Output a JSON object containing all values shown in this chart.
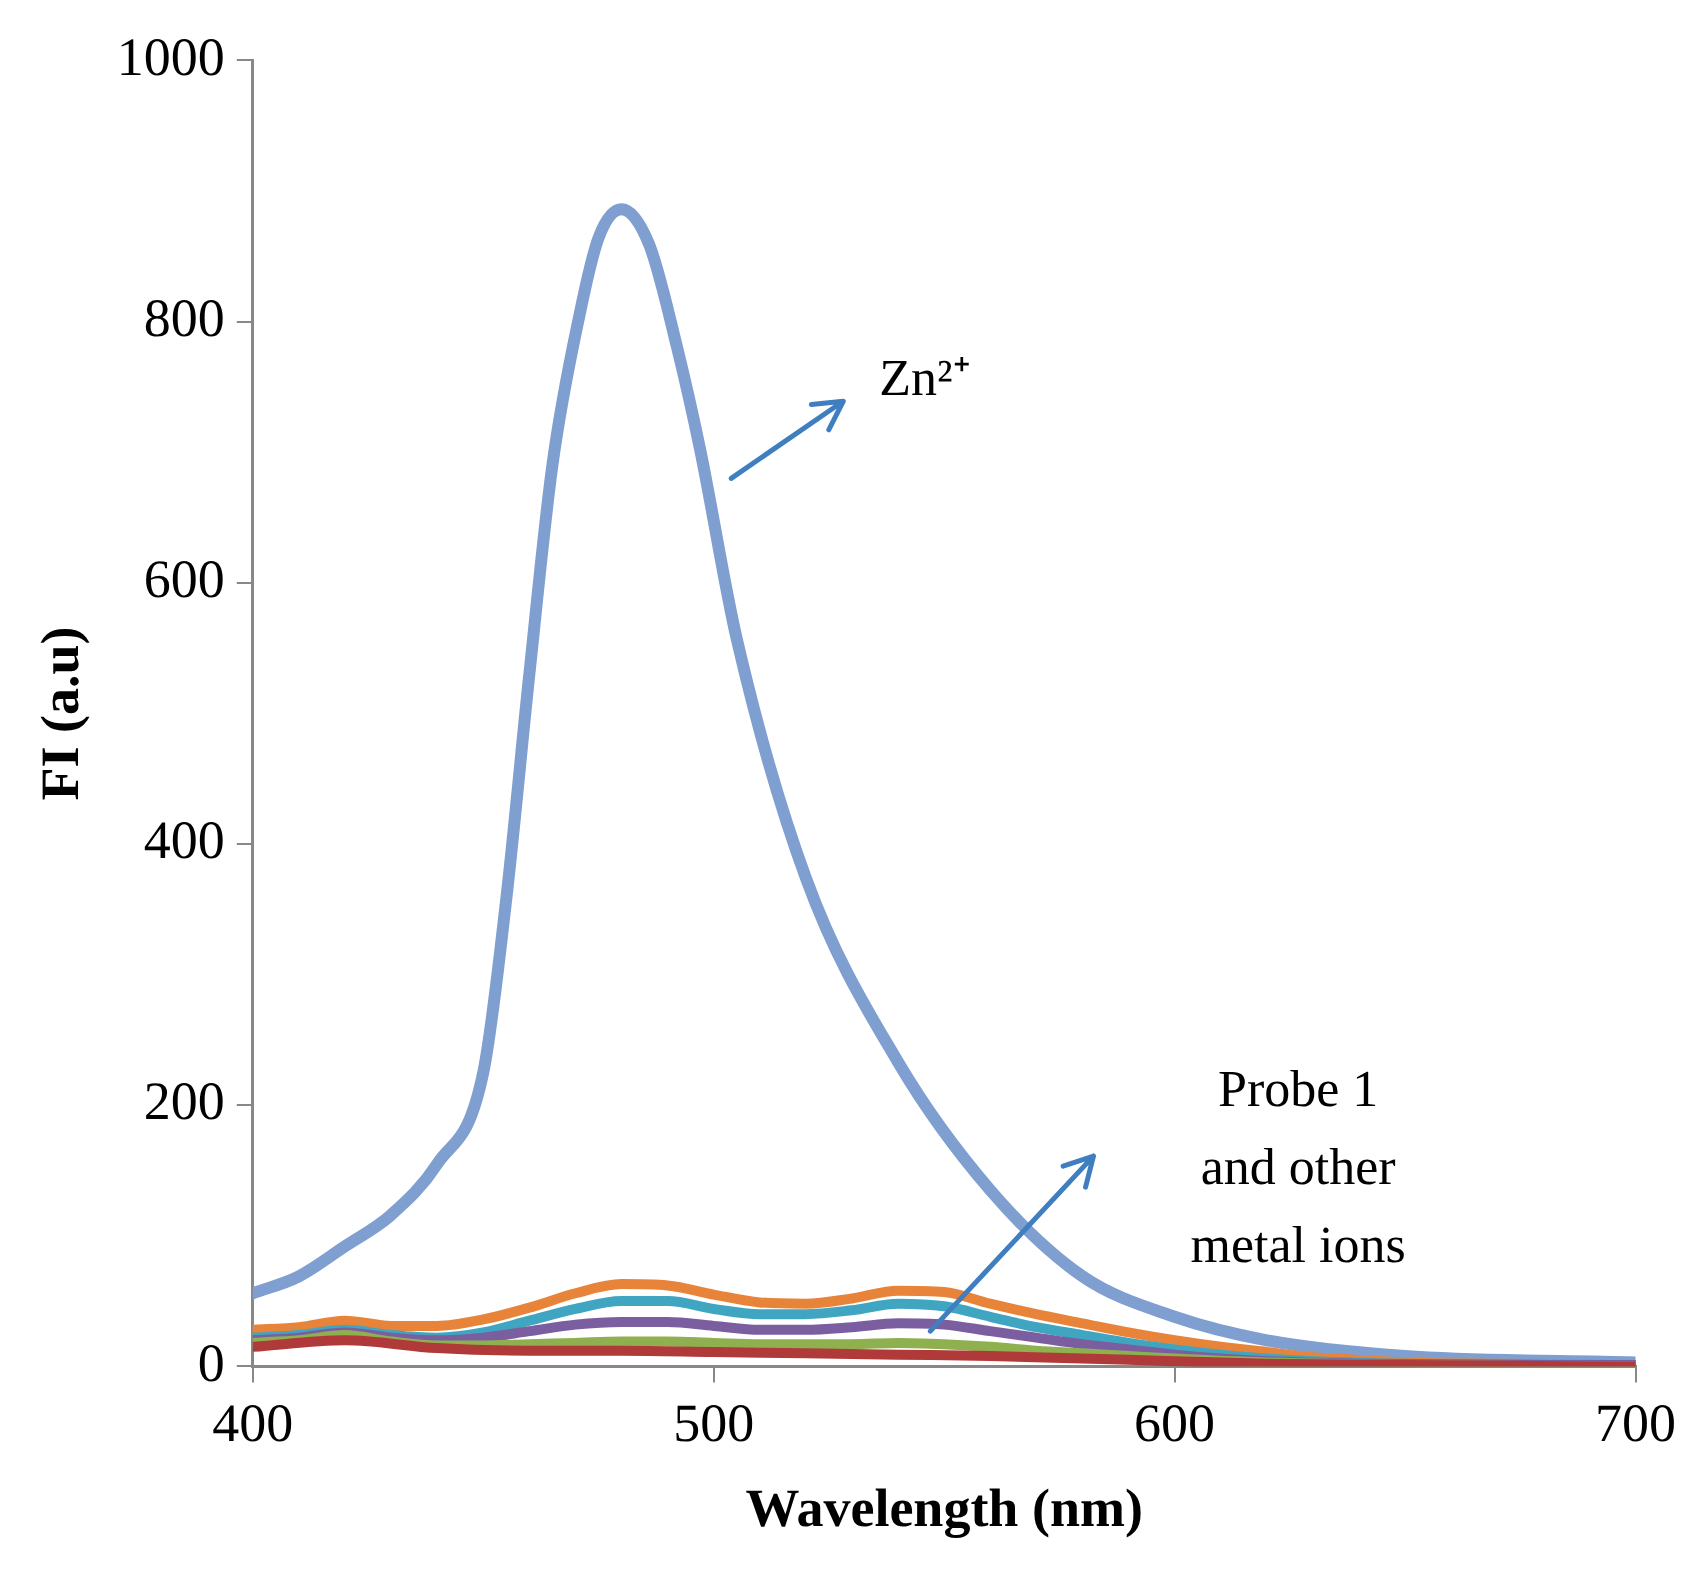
{
  "chart_data": {
    "type": "line",
    "xlabel": "Wavelength (nm)",
    "ylabel": "FI (a.u)",
    "xlim": [
      400,
      700
    ],
    "xticks": [
      400,
      500,
      600,
      700
    ],
    "ylim": [
      0,
      1000
    ],
    "yticks": [
      0,
      200,
      400,
      600,
      800,
      1000
    ],
    "grid": false,
    "legend": false,
    "marker": "none",
    "line_style": "solid",
    "annotations": [
      "Zn²⁺",
      "Probe 1\nand other\nmetal ions"
    ],
    "series": [
      {
        "color": "#7f9fd0",
        "x": [
          400,
          410,
          420,
          430,
          440,
          450,
          455,
          460,
          465,
          471,
          475,
          480,
          486,
          492,
          497,
          505,
          520,
          540,
          560,
          580,
          600,
          620,
          650,
          700
        ],
        "values": [
          56,
          69,
          92,
          116,
          155,
          225,
          358,
          530,
          690,
          807,
          864,
          886,
          859,
          781,
          703,
          557,
          374,
          233,
          135,
          69,
          38,
          20,
          8,
          3
        ]
      },
      {
        "color": "#e8843a",
        "x": [
          400,
          410,
          420,
          430,
          440,
          450,
          460,
          470,
          480,
          490,
          500,
          510,
          520,
          530,
          540,
          550,
          560,
          570,
          580,
          590,
          600,
          610,
          620,
          630,
          640,
          650,
          670,
          700
        ],
        "values": [
          28,
          30,
          35,
          31,
          31,
          36,
          45,
          56,
          63,
          62,
          55,
          49,
          48,
          52,
          58,
          57,
          48,
          40,
          33,
          26,
          20,
          15,
          11,
          7,
          5,
          3,
          2,
          1
        ]
      },
      {
        "color": "#3fa5c0",
        "x": [
          400,
          410,
          420,
          430,
          440,
          450,
          460,
          470,
          480,
          490,
          500,
          510,
          520,
          530,
          540,
          550,
          560,
          570,
          580,
          590,
          600,
          610,
          620,
          630,
          650,
          700
        ],
        "values": [
          22,
          24,
          28,
          24,
          22,
          26,
          35,
          44,
          50,
          50,
          44,
          40,
          40,
          43,
          48,
          46,
          38,
          30,
          24,
          18,
          13,
          9,
          6,
          4,
          2,
          1
        ]
      },
      {
        "color": "#7b5ea0",
        "x": [
          400,
          410,
          420,
          430,
          440,
          450,
          460,
          470,
          480,
          490,
          500,
          510,
          520,
          530,
          540,
          550,
          560,
          570,
          580,
          590,
          600,
          610,
          620,
          640,
          700
        ],
        "values": [
          20,
          22,
          26,
          22,
          20,
          22,
          27,
          32,
          34,
          34,
          31,
          28,
          28,
          30,
          33,
          32,
          27,
          22,
          17,
          13,
          9,
          6,
          4,
          2,
          1
        ]
      },
      {
        "color": "#8fb04f",
        "x": [
          400,
          410,
          420,
          430,
          440,
          450,
          460,
          470,
          480,
          490,
          500,
          510,
          520,
          530,
          540,
          550,
          560,
          570,
          580,
          590,
          600,
          620,
          650,
          700
        ],
        "values": [
          18,
          20,
          24,
          19,
          16,
          16,
          17,
          18,
          19,
          19,
          18,
          17,
          17,
          17,
          18,
          17,
          15,
          12,
          10,
          8,
          6,
          3,
          1,
          0
        ]
      },
      {
        "color": "#b03a3a",
        "x": [
          400,
          420,
          440,
          460,
          480,
          500,
          520,
          540,
          560,
          580,
          600,
          620,
          650,
          700
        ],
        "values": [
          15,
          20,
          14,
          12,
          12,
          11,
          10,
          9,
          8,
          6,
          4,
          2,
          1,
          0
        ]
      }
    ]
  }
}
